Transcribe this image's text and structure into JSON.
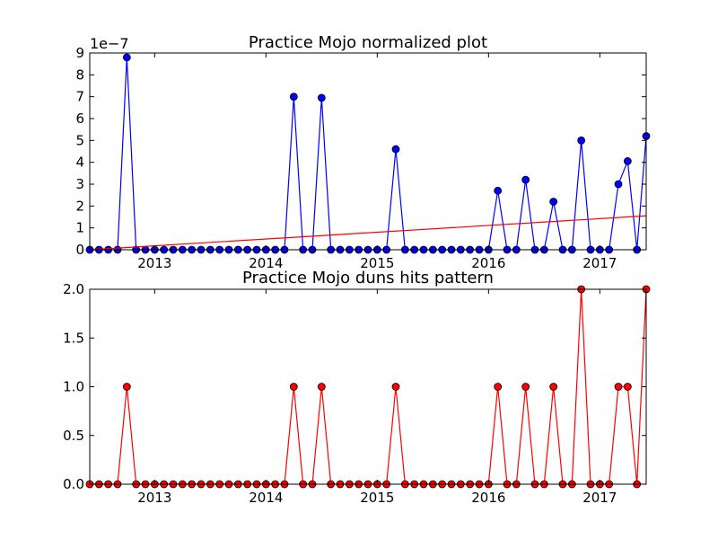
{
  "chart_data": [
    {
      "type": "line",
      "title": "Practice Mojo normalized plot",
      "xlabel": "",
      "ylabel": "",
      "y_offset_label": "1e−7",
      "xlim": [
        "2012-06",
        "2017-06"
      ],
      "ylim": [
        0,
        9
      ],
      "x_ticks": [
        "2013",
        "2014",
        "2015",
        "2016",
        "2017"
      ],
      "y_ticks": [
        "0",
        "1",
        "2",
        "3",
        "4",
        "5",
        "6",
        "7",
        "8",
        "9"
      ],
      "x": [
        "2012-06",
        "2012-07",
        "2012-08",
        "2012-09",
        "2012-10",
        "2012-11",
        "2012-12",
        "2013-01",
        "2013-02",
        "2013-03",
        "2013-04",
        "2013-05",
        "2013-06",
        "2013-07",
        "2013-08",
        "2013-09",
        "2013-10",
        "2013-11",
        "2013-12",
        "2014-01",
        "2014-02",
        "2014-03",
        "2014-04",
        "2014-05",
        "2014-06",
        "2014-07",
        "2014-08",
        "2014-09",
        "2014-10",
        "2014-11",
        "2014-12",
        "2015-01",
        "2015-02",
        "2015-03",
        "2015-04",
        "2015-05",
        "2015-06",
        "2015-07",
        "2015-08",
        "2015-09",
        "2015-10",
        "2015-11",
        "2015-12",
        "2016-01",
        "2016-02",
        "2016-03",
        "2016-04",
        "2016-05",
        "2016-06",
        "2016-07",
        "2016-08",
        "2016-09",
        "2016-10",
        "2016-11",
        "2016-12",
        "2017-01",
        "2017-02",
        "2017-03",
        "2017-04",
        "2017-05",
        "2017-06"
      ],
      "series": [
        {
          "color": "#0000ff",
          "marker": "circle",
          "values": [
            0,
            0,
            0,
            0,
            8.8,
            0,
            0,
            0,
            0,
            0,
            0,
            0,
            0,
            0,
            0,
            0,
            0,
            0,
            0,
            0,
            0,
            0,
            7.0,
            0,
            0,
            6.95,
            0,
            0,
            0,
            0,
            0,
            0,
            0,
            4.6,
            0,
            0,
            0,
            0,
            0,
            0,
            0,
            0,
            0,
            0,
            2.7,
            0,
            0,
            3.2,
            0,
            0,
            2.2,
            0,
            0,
            5.0,
            0,
            0,
            0,
            3.0,
            4.05,
            0,
            5.2
          ]
        },
        {
          "color": "#ff0000",
          "marker": "none",
          "values_linear": [
            [
              "2012-06",
              0.0
            ],
            [
              "2017-06",
              1.55
            ]
          ]
        }
      ],
      "grid": false,
      "legend": "none"
    },
    {
      "type": "line",
      "title": "Practice Mojo duns hits pattern",
      "xlabel": "",
      "ylabel": "",
      "xlim": [
        "2012-06",
        "2017-06"
      ],
      "ylim": [
        0,
        2.0
      ],
      "x_ticks": [
        "2013",
        "2014",
        "2015",
        "2016",
        "2017"
      ],
      "y_ticks": [
        "0.0",
        "0.5",
        "1.0",
        "1.5",
        "2.0"
      ],
      "x": [
        "2012-06",
        "2012-07",
        "2012-08",
        "2012-09",
        "2012-10",
        "2012-11",
        "2012-12",
        "2013-01",
        "2013-02",
        "2013-03",
        "2013-04",
        "2013-05",
        "2013-06",
        "2013-07",
        "2013-08",
        "2013-09",
        "2013-10",
        "2013-11",
        "2013-12",
        "2014-01",
        "2014-02",
        "2014-03",
        "2014-04",
        "2014-05",
        "2014-06",
        "2014-07",
        "2014-08",
        "2014-09",
        "2014-10",
        "2014-11",
        "2014-12",
        "2015-01",
        "2015-02",
        "2015-03",
        "2015-04",
        "2015-05",
        "2015-06",
        "2015-07",
        "2015-08",
        "2015-09",
        "2015-10",
        "2015-11",
        "2015-12",
        "2016-01",
        "2016-02",
        "2016-03",
        "2016-04",
        "2016-05",
        "2016-06",
        "2016-07",
        "2016-08",
        "2016-09",
        "2016-10",
        "2016-11",
        "2016-12",
        "2017-01",
        "2017-02",
        "2017-03",
        "2017-04",
        "2017-05",
        "2017-06"
      ],
      "series": [
        {
          "color": "#ff0000",
          "marker": "circle",
          "values": [
            0,
            0,
            0,
            0,
            1,
            0,
            0,
            0,
            0,
            0,
            0,
            0,
            0,
            0,
            0,
            0,
            0,
            0,
            0,
            0,
            0,
            0,
            1,
            0,
            0,
            1,
            0,
            0,
            0,
            0,
            0,
            0,
            0,
            1,
            0,
            0,
            0,
            0,
            0,
            0,
            0,
            0,
            0,
            0,
            1,
            0,
            0,
            1,
            0,
            0,
            1,
            0,
            0,
            2,
            0,
            0,
            0,
            1,
            1,
            0,
            2
          ]
        }
      ],
      "grid": false,
      "legend": "none"
    }
  ]
}
